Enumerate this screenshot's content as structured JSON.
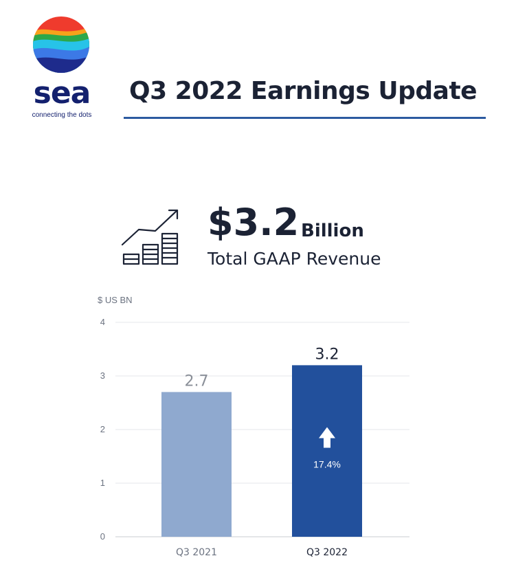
{
  "logo": {
    "wordmark": "sea",
    "tagline": "connecting the dots",
    "colors": [
      "#ef3b2d",
      "#f7a21b",
      "#2ca84a",
      "#27c3e8",
      "#3c79e6",
      "#1e2b8c"
    ]
  },
  "title": "Q3 2022 Earnings Update",
  "kpi": {
    "icon": "growth-chart-icon",
    "value": "$3.2",
    "unit": "Billion",
    "label": "Total GAAP Revenue"
  },
  "chart_data": {
    "type": "bar",
    "ylabel": "$ US BN",
    "ylim": [
      0,
      4
    ],
    "yticks": [
      "0",
      "1",
      "2",
      "3",
      "4"
    ],
    "categories": [
      "Q3 2021",
      "Q3 2022"
    ],
    "values": [
      2.7,
      3.2
    ],
    "value_labels": [
      "2.7",
      "3.2"
    ],
    "bar_colors": [
      "#8fa9cf",
      "#22509c"
    ],
    "annotation": {
      "text": "17.4%",
      "icon": "up-arrow-icon",
      "on_category": "Q3 2022"
    },
    "grid": true,
    "legend": "none"
  }
}
